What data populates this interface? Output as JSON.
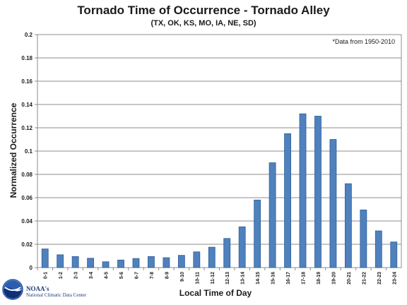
{
  "chart_data": {
    "type": "bar",
    "title": "Tornado Time of Occurrence - Tornado Alley",
    "subtitle": "(TX, OK, KS, MO, IA, NE, SD)",
    "xlabel": "Local Time of Day",
    "ylabel": "Normalized Occurrence",
    "annotation": "*Data from 1950-2010",
    "ylim": [
      0,
      0.2
    ],
    "yticks": [
      "0",
      "0.02",
      "0.04",
      "0.06",
      "0.08",
      "0.1",
      "0.12",
      "0.14",
      "0.16",
      "0.18",
      "0.2"
    ],
    "grid": true,
    "legend": "none",
    "bar_color": "#4f81bd",
    "categories": [
      "0-1",
      "1-2",
      "2-3",
      "3-4",
      "4-5",
      "5-6",
      "6-7",
      "7-8",
      "8-9",
      "9-10",
      "10-11",
      "11-12",
      "12-13",
      "13-14",
      "14-15",
      "15-16",
      "16-17",
      "17-18",
      "18-19",
      "19-20",
      "20-21",
      "21-22",
      "22-23",
      "23-24"
    ],
    "values": [
      0.016,
      0.011,
      0.0095,
      0.008,
      0.005,
      0.0065,
      0.0078,
      0.0095,
      0.0085,
      0.0105,
      0.0135,
      0.0175,
      0.025,
      0.035,
      0.058,
      0.09,
      0.115,
      0.132,
      0.13,
      0.11,
      0.072,
      0.0495,
      0.0315,
      0.022
    ]
  },
  "logo": {
    "icon": "noaa-logo-icon",
    "name": "NOAA's",
    "center": "National Climatic Data Center"
  }
}
